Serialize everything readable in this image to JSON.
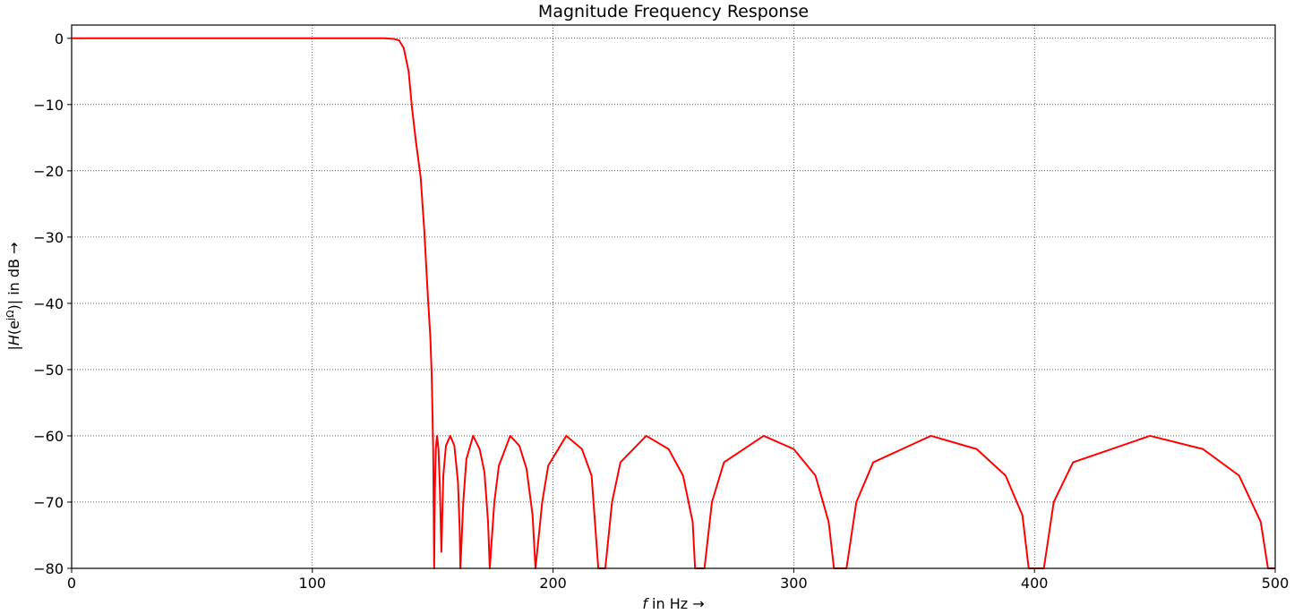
{
  "chart_data": {
    "type": "line",
    "title": "Magnitude Frequency Response",
    "x_label": [
      "f",
      " in Hz →"
    ],
    "y_label": [
      "|",
      "H",
      "(e",
      "jΩ",
      ")| in dB →"
    ],
    "xlim": [
      0,
      500
    ],
    "ylim": [
      -80,
      2
    ],
    "xticks": [
      0,
      100,
      200,
      300,
      400,
      500
    ],
    "yticks": [
      {
        "value": -80,
        "label": "−80"
      },
      {
        "value": -70,
        "label": "−70"
      },
      {
        "value": -60,
        "label": "−60"
      },
      {
        "value": -50,
        "label": "−50"
      },
      {
        "value": -40,
        "label": "−40"
      },
      {
        "value": -30,
        "label": "−30"
      },
      {
        "value": -20,
        "label": "−20"
      },
      {
        "value": -10,
        "label": "−10"
      },
      0
    ],
    "grid": true,
    "series": [
      {
        "color": "#ff0000",
        "x": [
          0,
          130,
          134,
          136,
          138,
          140,
          141.4,
          143,
          145,
          146.5,
          148,
          149,
          149.6,
          150.2,
          150.6,
          150.9,
          151.3,
          151.8,
          152.4,
          153,
          153.6,
          154.4,
          155.5,
          157.3,
          159,
          160.5,
          161.2,
          161.5,
          162.7,
          164,
          166.8,
          169.5,
          171.5,
          173,
          173.7,
          175.6,
          177.5,
          182.2,
          186,
          189,
          191.5,
          192.7,
          195.5,
          198,
          205.5,
          212,
          216,
          218.8,
          221.7,
          224.5,
          228,
          238.7,
          248,
          254,
          258,
          259,
          262.9,
          266,
          271,
          287.5,
          300,
          309,
          314.5,
          316.7,
          321.9,
          326,
          333,
          357,
          376,
          388,
          395,
          397.6,
          403.9,
          408,
          416,
          448,
          470,
          485,
          494,
          497,
          500
        ],
        "values": [
          0,
          0,
          -0.1,
          -0.3,
          -1.5,
          -5,
          -10.5,
          -15.5,
          -21,
          -29,
          -39,
          -45,
          -51,
          -62,
          -80,
          -68,
          -62,
          -60,
          -62,
          -68,
          -77.5,
          -66,
          -61.5,
          -60,
          -61.5,
          -67,
          -74,
          -80,
          -70,
          -63.5,
          -60,
          -62,
          -65.5,
          -73,
          -80,
          -70,
          -64.5,
          -60,
          -61.5,
          -65,
          -72,
          -80,
          -70,
          -64.5,
          -60,
          -62,
          -66,
          -80,
          -80,
          -70,
          -64,
          -60,
          -62,
          -66,
          -73,
          -80,
          -80,
          -70,
          -64,
          -60,
          -62,
          -66,
          -73,
          -80,
          -80,
          -70,
          -64,
          -60,
          -62,
          -66,
          -72,
          -80,
          -80,
          -70,
          -64,
          -60,
          -62,
          -66,
          -73,
          -80,
          -80
        ]
      }
    ]
  }
}
